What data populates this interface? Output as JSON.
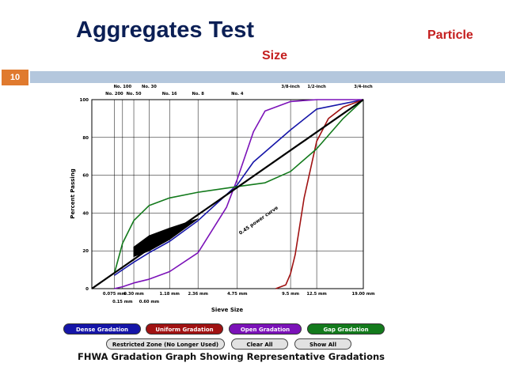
{
  "slide": {
    "title": "Aggregates Test",
    "title_tail_1": "Particle",
    "title_tail_2": "Size",
    "slide_number": "10",
    "colors": {
      "title": "#0b1f55",
      "accent_text": "#c41e1e",
      "bar": "#b4c7dd",
      "number_box": "#e07a2e"
    }
  },
  "chart_data": {
    "type": "line",
    "title": "",
    "xlabel": "Sieve Size",
    "ylabel": "Percent Passing",
    "x_scale": "power 0.45",
    "xlim": [
      0,
      19.0
    ],
    "ylim": [
      0,
      100
    ],
    "yticks": [
      0,
      20,
      40,
      60,
      80,
      100
    ],
    "sieve_mm": [
      0.075,
      0.15,
      0.3,
      0.6,
      1.18,
      2.36,
      4.75,
      9.5,
      12.5,
      19.0
    ],
    "bottom_labels_row1": [
      {
        "mm": 0.075,
        "text": "0.075 mm"
      },
      {
        "mm": 0.3,
        "text": "0.30 mm"
      },
      {
        "mm": 1.18,
        "text": "1.18 mm"
      },
      {
        "mm": 2.36,
        "text": "2.36 mm"
      },
      {
        "mm": 4.75,
        "text": "4.75 mm"
      },
      {
        "mm": 9.5,
        "text": "9.5 mm"
      },
      {
        "mm": 12.5,
        "text": "12.5 mm"
      },
      {
        "mm": 19.0,
        "text": "19.00 mm"
      }
    ],
    "bottom_labels_row2": [
      {
        "mm": 0.15,
        "text": "0.15 mm"
      },
      {
        "mm": 0.6,
        "text": "0.60 mm"
      }
    ],
    "top_labels_row1": [
      {
        "mm": 0.15,
        "text": "No. 100"
      },
      {
        "mm": 0.6,
        "text": "No. 30"
      },
      {
        "mm": 9.5,
        "text": "3/8-inch"
      },
      {
        "mm": 12.5,
        "text": "1/2-inch"
      },
      {
        "mm": 19.0,
        "text": "3/4-inch"
      }
    ],
    "top_labels_row2": [
      {
        "mm": 0.075,
        "text": "No. 200"
      },
      {
        "mm": 0.3,
        "text": "No. 50"
      },
      {
        "mm": 1.18,
        "text": "No. 16"
      },
      {
        "mm": 2.36,
        "text": "No. 8"
      },
      {
        "mm": 4.75,
        "text": "No. 4"
      }
    ],
    "max_density_line": {
      "label": "0.45 power curve",
      "x": [
        0,
        19.0
      ],
      "y": [
        0,
        100
      ],
      "color": "#000000"
    },
    "restricted_zone": {
      "upper": [
        [
          0.3,
          22
        ],
        [
          0.6,
          28
        ],
        [
          1.18,
          32
        ],
        [
          2.36,
          37
        ]
      ],
      "lower": [
        [
          2.36,
          37
        ],
        [
          1.18,
          26
        ],
        [
          0.6,
          20
        ],
        [
          0.3,
          17
        ]
      ],
      "color": "#000000"
    },
    "series": [
      {
        "name": "Dense Gradation",
        "color": "#1515a8",
        "x": [
          0.075,
          0.15,
          0.3,
          0.6,
          1.18,
          2.36,
          4.75,
          6.0,
          9.5,
          12.5,
          19.0
        ],
        "y": [
          7,
          10,
          14,
          19,
          25,
          36,
          55,
          67,
          84,
          95,
          100
        ]
      },
      {
        "name": "Uniform Gradation",
        "color": "#a01212",
        "x": [
          8.0,
          9.0,
          9.5,
          10.0,
          11.0,
          12.5,
          14.0,
          16.0,
          19.0
        ],
        "y": [
          0,
          2,
          8,
          18,
          48,
          78,
          90,
          96,
          100
        ]
      },
      {
        "name": "Open Gradation",
        "color": "#7b12b8",
        "x": [
          0.075,
          0.15,
          0.3,
          0.6,
          1.18,
          2.36,
          4.0,
          4.75,
          6.0,
          7.0,
          9.5,
          12.5,
          19.0
        ],
        "y": [
          0,
          1,
          3,
          5,
          9,
          19,
          43,
          58,
          83,
          94,
          99,
          100,
          100
        ]
      },
      {
        "name": "Gap Gradation",
        "color": "#137a1c",
        "x": [
          0.075,
          0.15,
          0.3,
          0.6,
          1.18,
          2.36,
          4.75,
          7.0,
          9.5,
          12.5,
          16.0,
          19.0
        ],
        "y": [
          8,
          24,
          36,
          44,
          48,
          51,
          54,
          56,
          62,
          74,
          90,
          100
        ]
      }
    ]
  },
  "buttons": {
    "dense": {
      "label": "Dense Gradation",
      "color": "#1515a8"
    },
    "uniform": {
      "label": "Uniform Gradation",
      "color": "#a01212"
    },
    "open": {
      "label": "Open Gradation",
      "color": "#7b12b8"
    },
    "gap": {
      "label": "Gap Gradation",
      "color": "#137a1c"
    },
    "restricted": {
      "label": "Restricted Zone (No Longer Used)"
    },
    "clear_all": {
      "label": "Clear All"
    },
    "show_all": {
      "label": "Show All"
    }
  },
  "caption": "FHWA Gradation Graph Showing Representative Gradations"
}
